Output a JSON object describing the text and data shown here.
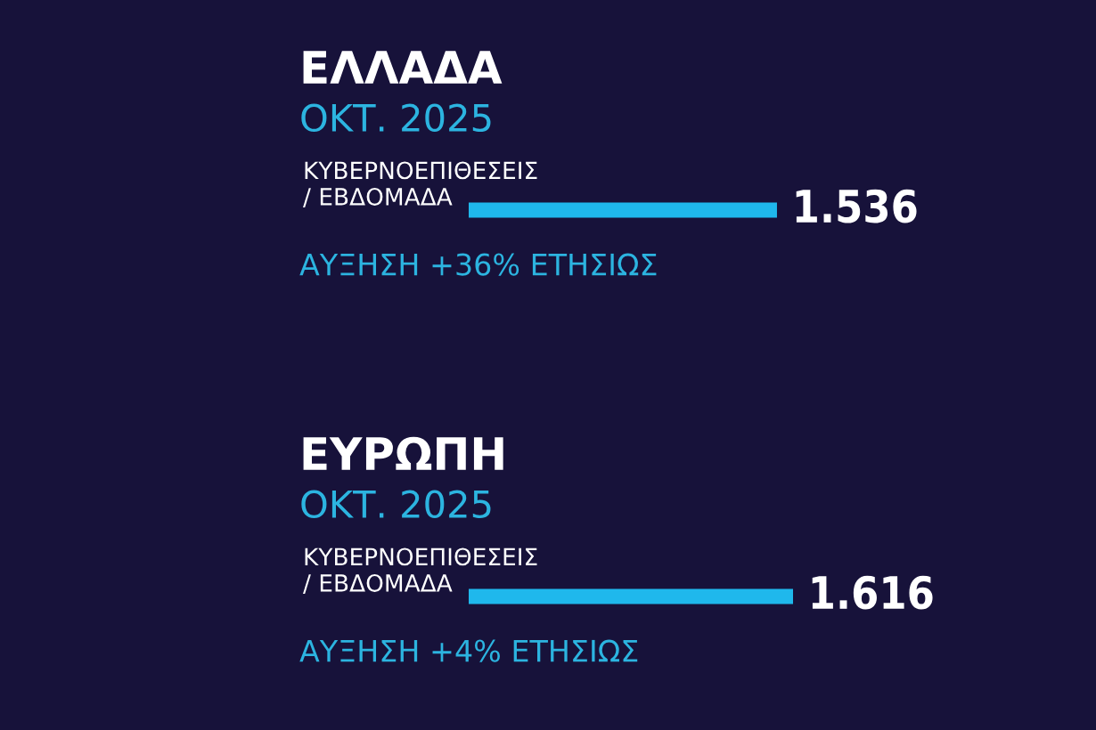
{
  "chart_data": [
    {
      "type": "bar",
      "orientation": "horizontal",
      "title": "ΕΛΛΑΔΑ",
      "subtitle": "ΟΚΤ. 2025",
      "categories": [
        "ΚΥΒΕΡΝΟΕΠΙΘΕΣΕΙΣ\n/ ΕΒΔΟΜΑΔΑ"
      ],
      "values": [
        1536
      ],
      "value_labels": [
        "1.536"
      ],
      "color": "#1fb8ec",
      "annotations": [
        "ΑΥΞΗΣΗ +36% ΕΤΗΣΙΩΣ"
      ]
    },
    {
      "type": "bar",
      "orientation": "horizontal",
      "title": "ΕΥΡΩΠΗ",
      "subtitle": "ΟΚΤ. 2025",
      "categories": [
        "ΚΥΒΕΡΝΟΕΠΙΘΕΣΕΙΣ\n/ ΕΒΔΟΜΑΔΑ"
      ],
      "values": [
        1616
      ],
      "value_labels": [
        "1.616"
      ],
      "color": "#1fb8ec",
      "annotations": [
        "ΑΥΞΗΣΗ +4% ΕΤΗΣΙΩΣ"
      ]
    }
  ]
}
